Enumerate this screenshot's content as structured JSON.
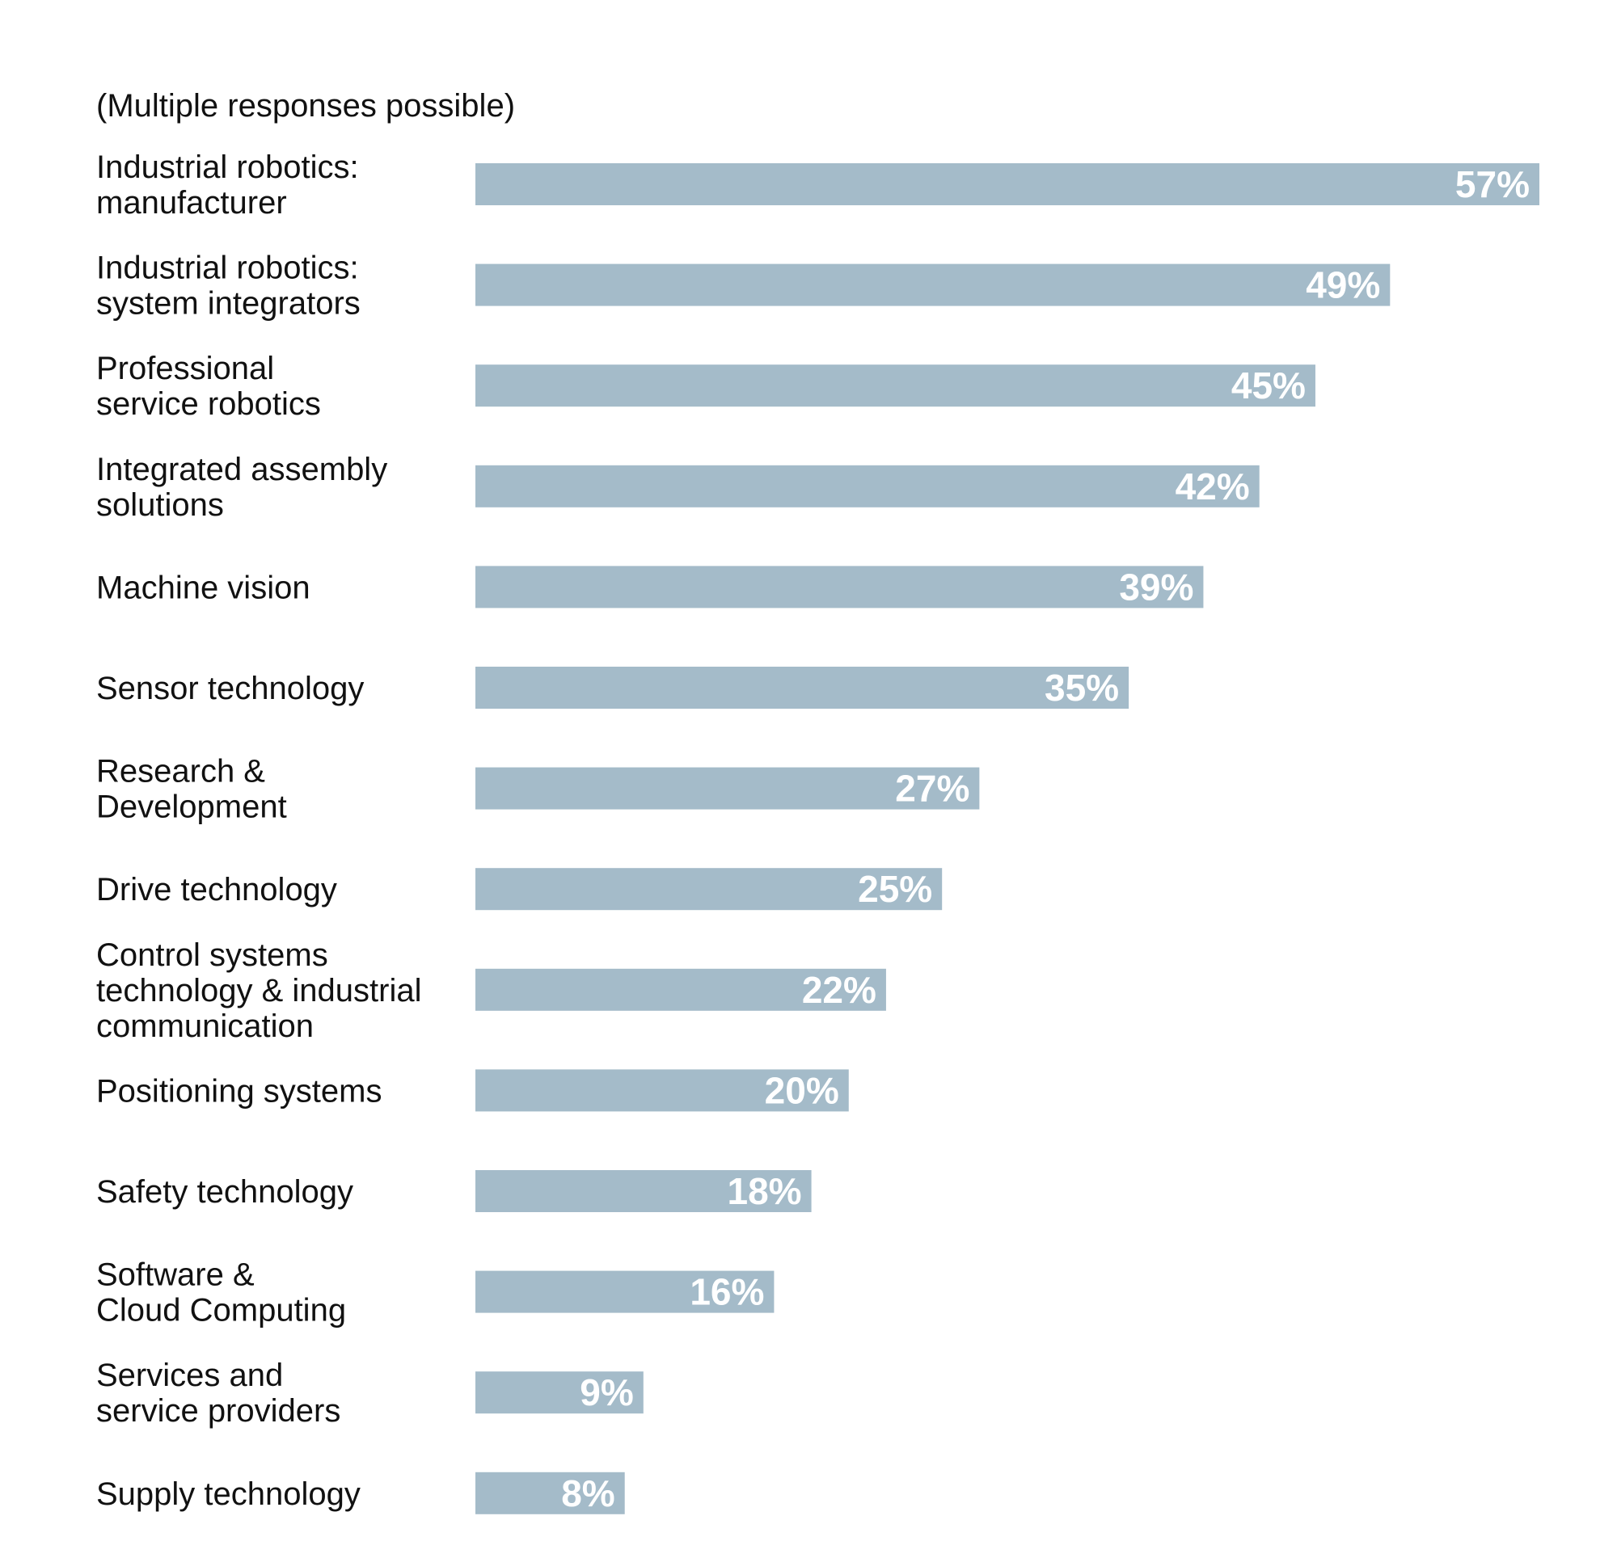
{
  "chart_data": {
    "type": "bar",
    "orientation": "horizontal",
    "note": "(Multiple responses possible)",
    "categories": [
      [
        "Industrial robotics:",
        "manufacturer"
      ],
      [
        "Industrial robotics:",
        "system integrators"
      ],
      [
        "Professional",
        "service robotics"
      ],
      [
        "Integrated assembly",
        "solutions"
      ],
      [
        "Machine vision"
      ],
      [
        "Sensor technology"
      ],
      [
        "Research &",
        "Development"
      ],
      [
        "Drive technology"
      ],
      [
        "Control systems",
        "technology & industrial",
        "communication"
      ],
      [
        "Positioning systems"
      ],
      [
        "Safety technology"
      ],
      [
        "Software &",
        "Cloud Computing"
      ],
      [
        "Services and",
        "service providers"
      ],
      [
        "Supply technology"
      ]
    ],
    "values": [
      57,
      49,
      45,
      42,
      39,
      35,
      27,
      25,
      22,
      20,
      18,
      16,
      9,
      8
    ],
    "value_labels": [
      "57%",
      "49%",
      "45%",
      "42%",
      "39%",
      "35%",
      "27%",
      "25%",
      "22%",
      "20%",
      "18%",
      "16%",
      "9%",
      "8%"
    ],
    "unit": "%",
    "xlim": [
      0,
      57
    ],
    "grid": false,
    "legend": "none",
    "colors": {
      "bar": "#a4bbc9",
      "value_label": "#ffffff",
      "text": "#111111"
    }
  }
}
